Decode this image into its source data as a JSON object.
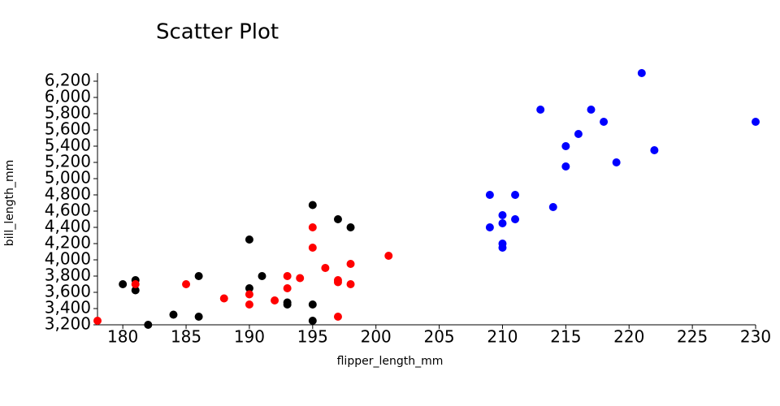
{
  "chart_data": {
    "type": "scatter",
    "title": "Scatter Plot",
    "x_label": "flipper_length_mm",
    "y_label": "bill_length_mm",
    "xlim": [
      178,
      230
    ],
    "xticks": [
      180,
      185,
      190,
      195,
      200,
      205,
      210,
      215,
      220,
      225,
      230
    ],
    "ylim": [
      3200,
      6300
    ],
    "yticks": [
      {
        "value": 3200,
        "label": "3,200"
      },
      {
        "value": 3400,
        "label": "3,400"
      },
      {
        "value": 3600,
        "label": "3,600"
      },
      {
        "value": 3800,
        "label": "3,800"
      },
      {
        "value": 4000,
        "label": "4,000"
      },
      {
        "value": 4200,
        "label": "4,200"
      },
      {
        "value": 4400,
        "label": "4,400"
      },
      {
        "value": 4600,
        "label": "4,600"
      },
      {
        "value": 4800,
        "label": "4,800"
      },
      {
        "value": 5000,
        "label": "5,000"
      },
      {
        "value": 5200,
        "label": "5,200"
      },
      {
        "value": 5400,
        "label": "5,400"
      },
      {
        "value": 5600,
        "label": "5,600"
      },
      {
        "value": 5800,
        "label": "5,800"
      },
      {
        "value": 6000,
        "label": "6,000"
      },
      {
        "value": 6200,
        "label": "6,200"
      }
    ],
    "grid": false,
    "series": [
      {
        "color": "#000000",
        "x": [
          180,
          181,
          181,
          182,
          184,
          186,
          186,
          190,
          190,
          191,
          193,
          193,
          195,
          195,
          195,
          197,
          198
        ],
        "values": [
          3700,
          3750,
          3625,
          3200,
          3325,
          3800,
          3300,
          4250,
          3650,
          3800,
          3475,
          3450,
          4675,
          3450,
          3250,
          4500,
          4400
        ]
      },
      {
        "color": "#ff0000",
        "x": [
          178,
          181,
          185,
          188,
          190,
          190,
          192,
          193,
          193,
          194,
          195,
          195,
          196,
          197,
          197,
          197,
          198,
          198,
          201
        ],
        "values": [
          3250,
          3700,
          3700,
          3525,
          3575,
          3450,
          3500,
          3800,
          3650,
          3775,
          4400,
          4150,
          3900,
          3750,
          3725,
          3300,
          3950,
          3700,
          4050
        ]
      },
      {
        "color": "#0000ff",
        "x": [
          209,
          209,
          210,
          210,
          210,
          210,
          211,
          211,
          213,
          214,
          215,
          215,
          216,
          217,
          218,
          219,
          221,
          222,
          230
        ],
        "values": [
          4800,
          4400,
          4550,
          4450,
          4200,
          4150,
          4800,
          4500,
          5850,
          4650,
          5400,
          5150,
          5550,
          5850,
          5700,
          5200,
          6300,
          5350,
          5700
        ]
      }
    ]
  }
}
